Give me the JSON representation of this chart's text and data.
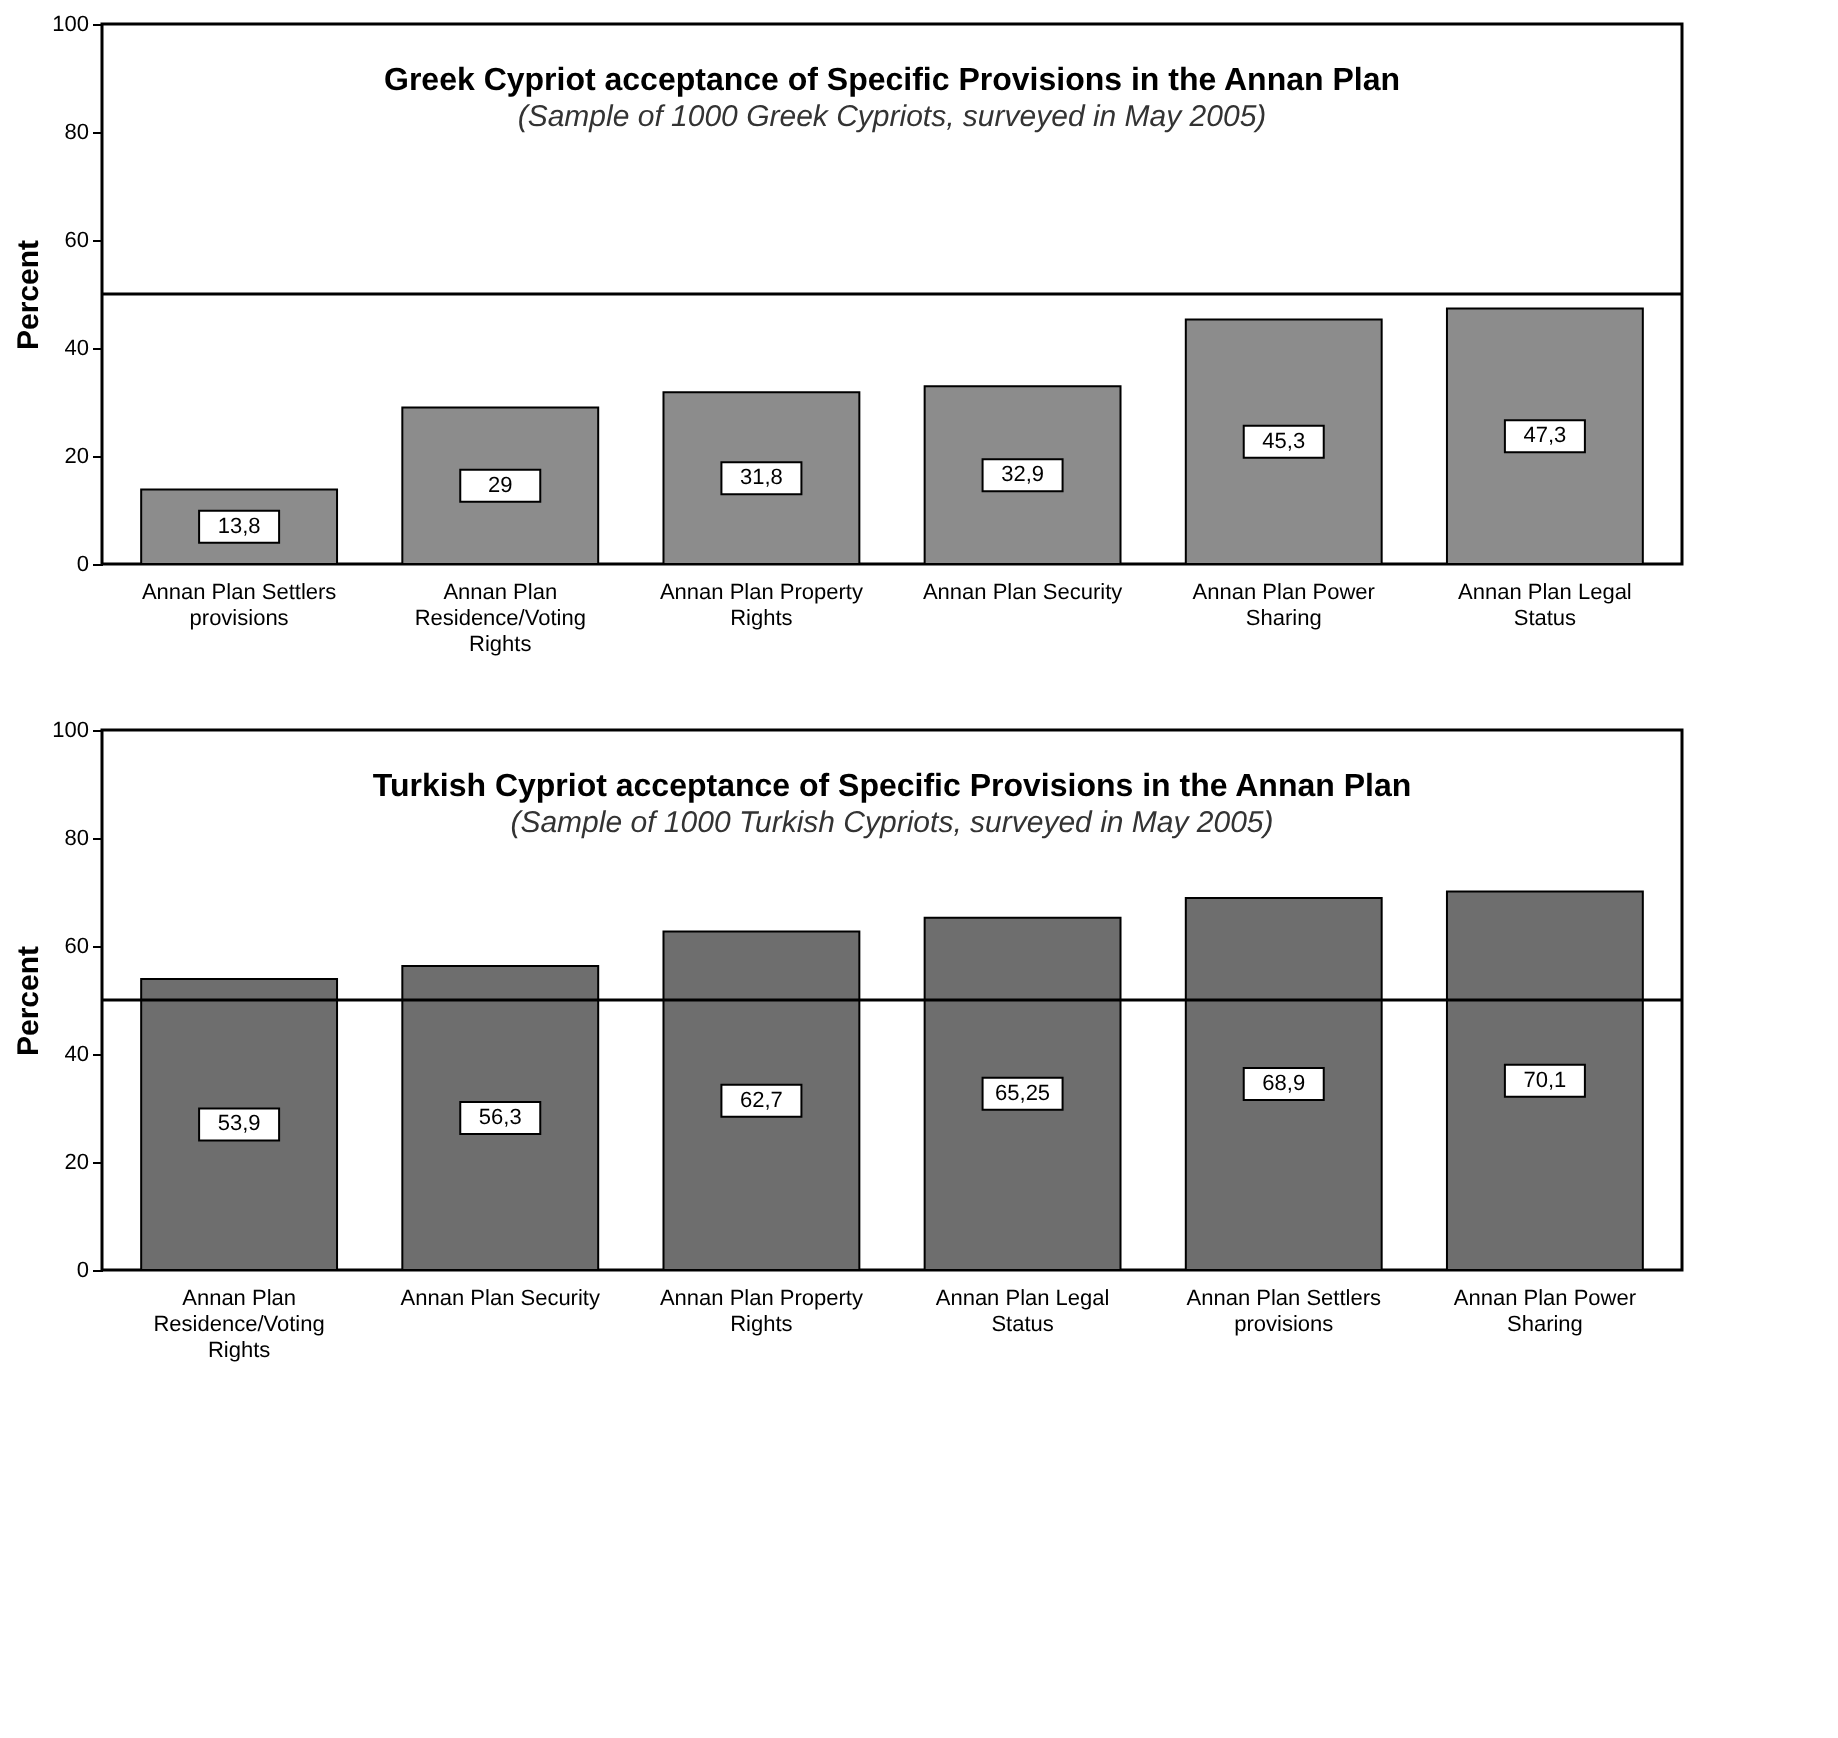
{
  "chart_data": [
    {
      "type": "bar",
      "title": "Greek Cypriot acceptance of Specific Provisions in the Annan Plan",
      "subtitle": "(Sample of 1000 Greek Cypriots, surveyed in May 2005)",
      "ylabel": "Percent",
      "categories": [
        "Annan Plan Settlers provisions",
        "Annan Plan Residence/Voting Rights",
        "Annan Plan Property Rights",
        "Annan Plan Security",
        "Annan Plan Power Sharing",
        "Annan Plan Legal Status"
      ],
      "values": [
        13.8,
        29,
        31.8,
        32.9,
        45.3,
        47.3
      ],
      "value_labels": [
        "13,8",
        "29",
        "31,8",
        "32,9",
        "45,3",
        "47,3"
      ],
      "color": "#8c8c8c",
      "ylim": [
        0,
        100
      ],
      "yticks": [
        0,
        20,
        40,
        60,
        80,
        100
      ],
      "grid": false,
      "ref_lines": [
        {
          "axis": "y",
          "value": 50,
          "color": "#000000"
        }
      ]
    },
    {
      "type": "bar",
      "title": "Turkish Cypriot acceptance of Specific Provisions in the Annan Plan",
      "subtitle": "(Sample of 1000 Turkish Cypriots, surveyed in May 2005)",
      "ylabel": "Percent",
      "categories": [
        "Annan Plan Residence/Voting Rights",
        "Annan Plan Security",
        "Annan Plan Property Rights",
        "Annan Plan Legal Status",
        "Annan Plan Settlers provisions",
        "Annan Plan Power Sharing"
      ],
      "values": [
        53.9,
        56.3,
        62.7,
        65.25,
        68.9,
        70.1
      ],
      "value_labels": [
        "53,9",
        "56,3",
        "62,7",
        "65,25",
        "68,9",
        "70,1"
      ],
      "color": "#6e6e6e",
      "ylim": [
        0,
        100
      ],
      "yticks": [
        0,
        20,
        40,
        60,
        80,
        100
      ],
      "grid": false,
      "ref_lines": [
        {
          "axis": "y",
          "value": 50,
          "color": "#000000"
        }
      ]
    }
  ]
}
